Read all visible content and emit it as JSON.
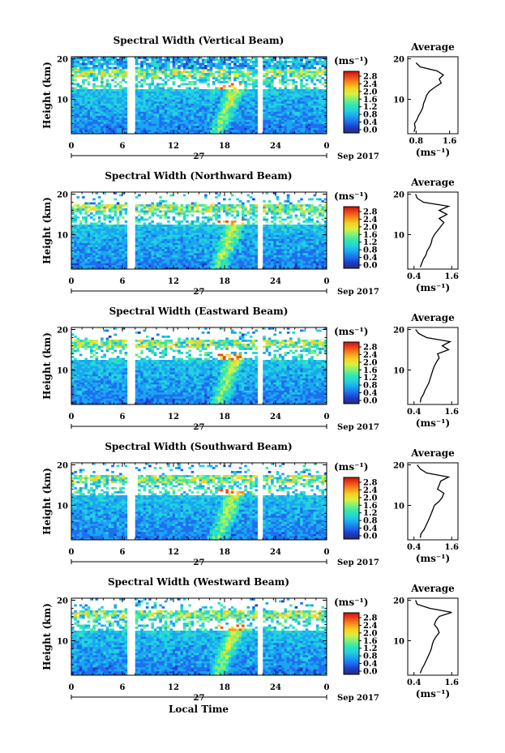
{
  "chart_data": [
    {
      "type": "heatmap",
      "title": "Spectral Width (Vertical Beam)",
      "ylabel": "Height (km)",
      "yticks": [
        "20",
        "10"
      ],
      "xticks": [
        "0",
        "6",
        "12",
        "18",
        "24",
        "0"
      ],
      "ylim": [
        1.5,
        20.5
      ],
      "xlim": [
        0,
        24
      ],
      "colorbar": {
        "unit": "(ms⁻¹)",
        "ticks": [
          "2.8",
          "2.4",
          "2.0",
          "1.6",
          "1.2",
          "0.8",
          "0.4",
          "0.0"
        ]
      },
      "profile": {
        "title": "Average",
        "xlabel": "(ms⁻¹)",
        "xticks": [
          "0.8",
          "1.6"
        ],
        "xlim": [
          0.6,
          1.8
        ],
        "yticks": [
          "20",
          "10"
        ],
        "heights": [
          2,
          3,
          4,
          5,
          6,
          7,
          8,
          9,
          10,
          11,
          12,
          13,
          14,
          15,
          16,
          17,
          18,
          19
        ],
        "values": [
          0.75,
          0.78,
          0.76,
          0.82,
          0.86,
          0.92,
          0.96,
          0.98,
          1.02,
          1.05,
          1.12,
          1.25,
          1.4,
          1.35,
          1.45,
          1.3,
          0.9,
          0.8
        ]
      }
    },
    {
      "type": "heatmap",
      "title": "Spectral Width (Northward Beam)",
      "ylabel": "Height (km)",
      "yticks": [
        "20",
        "10"
      ],
      "xticks": [
        "0",
        "6",
        "12",
        "18",
        "24",
        "0"
      ],
      "ylim": [
        1.5,
        20.5
      ],
      "xlim": [
        0,
        24
      ],
      "colorbar": {
        "unit": "(ms⁻¹)",
        "ticks": [
          "2.8",
          "2.4",
          "2.0",
          "1.6",
          "1.2",
          "0.8",
          "0.4",
          "0.0"
        ]
      },
      "profile": {
        "title": "Average",
        "xlabel": "(ms⁻¹)",
        "xticks": [
          "0.4",
          "1.6"
        ],
        "xlim": [
          0.2,
          1.8
        ],
        "yticks": [
          "20",
          "10"
        ],
        "heights": [
          2,
          3,
          4,
          5,
          6,
          7,
          8,
          9,
          10,
          11,
          12,
          13,
          14,
          15,
          16,
          17,
          18,
          19,
          20
        ],
        "values": [
          0.6,
          0.65,
          0.7,
          0.78,
          0.82,
          0.9,
          0.95,
          0.98,
          1.05,
          1.15,
          1.25,
          1.35,
          1.2,
          1.45,
          1.2,
          1.5,
          0.7,
          0.5,
          0.45
        ]
      }
    },
    {
      "type": "heatmap",
      "title": "Spectral Width (Eastward Beam)",
      "ylabel": "Height (km)",
      "yticks": [
        "20",
        "10"
      ],
      "xticks": [
        "0",
        "6",
        "12",
        "18",
        "24",
        "0"
      ],
      "ylim": [
        1.5,
        20.5
      ],
      "xlim": [
        0,
        24
      ],
      "colorbar": {
        "unit": "(ms⁻¹)",
        "ticks": [
          "2.8",
          "2.4",
          "2.0",
          "1.6",
          "1.2",
          "0.8",
          "0.4",
          "0.0"
        ]
      },
      "profile": {
        "title": "Average",
        "xlabel": "(ms⁻¹)",
        "xticks": [
          "0.4",
          "1.6"
        ],
        "xlim": [
          0.2,
          1.8
        ],
        "yticks": [
          "20",
          "10"
        ],
        "heights": [
          2,
          3,
          4,
          5,
          6,
          7,
          8,
          9,
          10,
          11,
          12,
          13,
          14,
          15,
          16,
          17,
          18,
          19,
          20
        ],
        "values": [
          0.6,
          0.62,
          0.7,
          0.75,
          0.82,
          0.88,
          0.92,
          0.96,
          1.0,
          1.05,
          1.12,
          1.2,
          1.15,
          1.5,
          1.3,
          1.55,
          0.8,
          0.55,
          0.45
        ]
      }
    },
    {
      "type": "heatmap",
      "title": "Spectral Width (Southward Beam)",
      "ylabel": "Height (km)",
      "yticks": [
        "20",
        "10"
      ],
      "xticks": [
        "0",
        "6",
        "12",
        "18",
        "24",
        "0"
      ],
      "ylim": [
        1.5,
        20.5
      ],
      "xlim": [
        0,
        24
      ],
      "colorbar": {
        "unit": "(ms⁻¹)",
        "ticks": [
          "2.8",
          "2.4",
          "2.0",
          "1.6",
          "1.2",
          "0.8",
          "0.4",
          "0.0"
        ]
      },
      "profile": {
        "title": "Average",
        "xlabel": "(ms⁻¹)",
        "xticks": [
          "0.4",
          "1.6"
        ],
        "xlim": [
          0.2,
          1.8
        ],
        "yticks": [
          "20",
          "10"
        ],
        "heights": [
          2,
          3,
          4,
          5,
          6,
          7,
          8,
          9,
          10,
          11,
          12,
          13,
          14,
          15,
          16,
          17,
          18,
          19,
          20
        ],
        "values": [
          0.6,
          0.62,
          0.72,
          0.78,
          0.84,
          0.9,
          0.95,
          1.0,
          1.05,
          1.2,
          1.3,
          1.35,
          1.15,
          1.2,
          1.25,
          1.5,
          0.8,
          0.6,
          0.5
        ]
      }
    },
    {
      "type": "heatmap",
      "title": "Spectral Width (Westward Beam)",
      "ylabel": "Height (km)",
      "yticks": [
        "20",
        "10"
      ],
      "xticks": [
        "0",
        "6",
        "12",
        "18",
        "24",
        "0"
      ],
      "ylim": [
        1.5,
        20.5
      ],
      "xlim": [
        0,
        24
      ],
      "colorbar": {
        "unit": "(ms⁻¹)",
        "ticks": [
          "2.8",
          "2.4",
          "2.0",
          "1.6",
          "1.2",
          "0.8",
          "0.4",
          "0.0"
        ]
      },
      "profile": {
        "title": "Average",
        "xlabel": "(ms⁻¹)",
        "xticks": [
          "0.4",
          "1.6"
        ],
        "xlim": [
          0.2,
          1.8
        ],
        "yticks": [
          "20",
          "10"
        ],
        "heights": [
          2,
          3,
          4,
          5,
          6,
          7,
          8,
          9,
          10,
          11,
          12,
          13,
          14,
          15,
          16,
          17,
          18,
          19,
          20
        ],
        "values": [
          0.6,
          0.65,
          0.72,
          0.78,
          0.84,
          0.9,
          0.95,
          0.98,
          1.02,
          1.1,
          1.2,
          1.15,
          1.05,
          1.1,
          1.2,
          1.6,
          0.9,
          0.5,
          0.45
        ]
      }
    }
  ],
  "date_axis": {
    "day": "27",
    "month_year": "Sep 2017"
  },
  "xlabel": "Local Time",
  "colormap": [
    "#2a2a7a",
    "#1c3cc8",
    "#1e6ff0",
    "#1aa6f0",
    "#22d2e0",
    "#30e8b0",
    "#7ff07a",
    "#d8f040",
    "#f8d020",
    "#f89018",
    "#f04818",
    "#c81010"
  ]
}
